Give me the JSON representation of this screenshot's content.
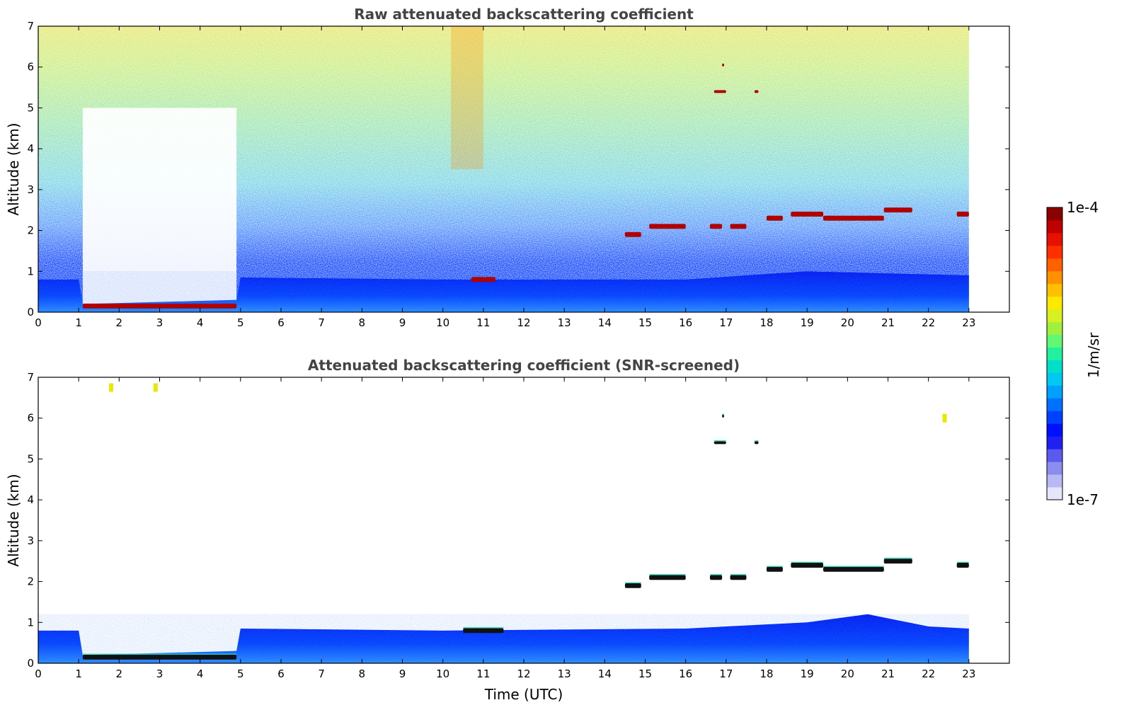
{
  "chart_data": [
    {
      "type": "heatmap",
      "title": "Raw attenuated backscattering coefficient",
      "xlabel": "",
      "ylabel": "Altitude (km)",
      "xlim": [
        0,
        24
      ],
      "ylim": [
        0,
        7
      ],
      "x_ticks": [
        "0",
        "1",
        "2",
        "3",
        "4",
        "5",
        "6",
        "7",
        "8",
        "9",
        "10",
        "11",
        "12",
        "13",
        "14",
        "15",
        "16",
        "17",
        "18",
        "19",
        "20",
        "21",
        "22",
        "23"
      ],
      "y_ticks": [
        "0",
        "1",
        "2",
        "3",
        "4",
        "5",
        "6",
        "7"
      ],
      "data_end_hour": 23,
      "noise_gap": {
        "t_start": 1.1,
        "t_end": 4.9,
        "alt_top": 5.0
      },
      "boundary_layer": [
        {
          "t": 0,
          "h": 0.8
        },
        {
          "t": 1,
          "h": 0.8
        },
        {
          "t": 1.1,
          "h": 0.2
        },
        {
          "t": 4.9,
          "h": 0.3
        },
        {
          "t": 5,
          "h": 0.85
        },
        {
          "t": 10,
          "h": 0.8
        },
        {
          "t": 16,
          "h": 0.8
        },
        {
          "t": 19,
          "h": 1.0
        },
        {
          "t": 23,
          "h": 0.9
        }
      ],
      "cloud_layers": [
        {
          "t_start": 1.1,
          "t_end": 4.9,
          "alt": 0.15
        },
        {
          "t_start": 10.7,
          "t_end": 11.3,
          "alt": 0.8
        },
        {
          "t_start": 14.5,
          "t_end": 14.9,
          "alt": 1.9
        },
        {
          "t_start": 15.1,
          "t_end": 16.0,
          "alt": 2.1
        },
        {
          "t_start": 16.6,
          "t_end": 16.9,
          "alt": 2.1
        },
        {
          "t_start": 17.1,
          "t_end": 17.5,
          "alt": 2.1
        },
        {
          "t_start": 18.0,
          "t_end": 18.4,
          "alt": 2.3
        },
        {
          "t_start": 18.6,
          "t_end": 19.4,
          "alt": 2.4
        },
        {
          "t_start": 19.4,
          "t_end": 20.9,
          "alt": 2.3
        },
        {
          "t_start": 20.9,
          "t_end": 21.6,
          "alt": 2.5
        },
        {
          "t_start": 22.7,
          "t_end": 23.0,
          "alt": 2.4
        },
        {
          "t_start": 16.7,
          "t_end": 17.0,
          "alt": 5.4
        },
        {
          "t_start": 17.7,
          "t_end": 17.8,
          "alt": 5.4
        },
        {
          "t_start": 16.9,
          "t_end": 16.95,
          "alt": 6.05
        }
      ]
    },
    {
      "type": "heatmap",
      "title": "Attenuated backscattering coefficient (SNR-screened)",
      "xlabel": "Time (UTC)",
      "ylabel": "Altitude (km)",
      "xlim": [
        0,
        24
      ],
      "ylim": [
        0,
        7
      ],
      "x_ticks": [
        "0",
        "1",
        "2",
        "3",
        "4",
        "5",
        "6",
        "7",
        "8",
        "9",
        "10",
        "11",
        "12",
        "13",
        "14",
        "15",
        "16",
        "17",
        "18",
        "19",
        "20",
        "21",
        "22",
        "23"
      ],
      "y_ticks": [
        "0",
        "1",
        "2",
        "3",
        "4",
        "5",
        "6",
        "7"
      ],
      "data_end_hour": 23,
      "boundary_layer": [
        {
          "t": 0,
          "h": 0.8
        },
        {
          "t": 1,
          "h": 0.8
        },
        {
          "t": 1.1,
          "h": 0.2
        },
        {
          "t": 4.9,
          "h": 0.3
        },
        {
          "t": 5,
          "h": 0.85
        },
        {
          "t": 10,
          "h": 0.8
        },
        {
          "t": 16,
          "h": 0.85
        },
        {
          "t": 19,
          "h": 1.0
        },
        {
          "t": 20.5,
          "h": 1.2
        },
        {
          "t": 22,
          "h": 0.9
        },
        {
          "t": 23,
          "h": 0.85
        }
      ],
      "cloud_layers": [
        {
          "t_start": 1.1,
          "t_end": 4.9,
          "alt": 0.15
        },
        {
          "t_start": 10.5,
          "t_end": 11.5,
          "alt": 0.8
        },
        {
          "t_start": 14.5,
          "t_end": 14.9,
          "alt": 1.9
        },
        {
          "t_start": 15.1,
          "t_end": 16.0,
          "alt": 2.1
        },
        {
          "t_start": 16.6,
          "t_end": 16.9,
          "alt": 2.1
        },
        {
          "t_start": 17.1,
          "t_end": 17.5,
          "alt": 2.1
        },
        {
          "t_start": 18.0,
          "t_end": 18.4,
          "alt": 2.3
        },
        {
          "t_start": 18.6,
          "t_end": 19.4,
          "alt": 2.4
        },
        {
          "t_start": 19.4,
          "t_end": 20.9,
          "alt": 2.3
        },
        {
          "t_start": 20.9,
          "t_end": 21.6,
          "alt": 2.5
        },
        {
          "t_start": 22.7,
          "t_end": 23.0,
          "alt": 2.4
        },
        {
          "t_start": 16.7,
          "t_end": 17.0,
          "alt": 5.4
        },
        {
          "t_start": 17.7,
          "t_end": 17.8,
          "alt": 5.4
        },
        {
          "t_start": 16.9,
          "t_end": 16.95,
          "alt": 6.05
        }
      ],
      "aerosol_specks": [
        {
          "t": 22.4,
          "alt": 6.0
        },
        {
          "t": 1.8,
          "alt": 6.75
        },
        {
          "t": 2.9,
          "alt": 6.75
        }
      ]
    }
  ],
  "colorbar": {
    "label": "1/m/sr",
    "max_label": "1e-4",
    "min_label": "1e-7",
    "colors": [
      "#e6e6fa",
      "#b8b8f4",
      "#8c8cee",
      "#5a5af0",
      "#2020f0",
      "#0010ff",
      "#0040ff",
      "#0070ff",
      "#00a0ff",
      "#00c8f0",
      "#00e0c8",
      "#20f0a0",
      "#60f870",
      "#a0f040",
      "#d8f020",
      "#ffe800",
      "#ffc000",
      "#ff9000",
      "#ff6000",
      "#ff3000",
      "#e81000",
      "#c00000",
      "#8b0000"
    ]
  }
}
